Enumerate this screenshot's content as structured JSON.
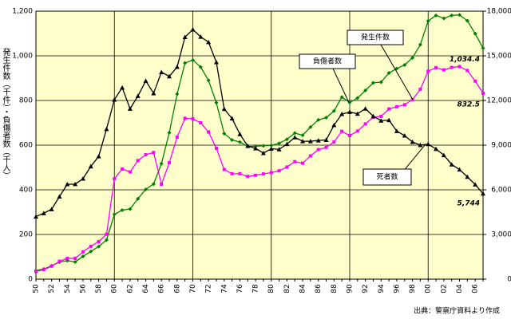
{
  "chart_data": {
    "type": "line",
    "y_label": "発生件数（千件）・負傷者数（千人）",
    "source": "出典：警察庁資料より作成",
    "categories": [
      "50",
      null,
      "52",
      null,
      "54",
      null,
      "56",
      null,
      "58",
      null,
      "60",
      null,
      "62",
      null,
      "64",
      null,
      "66",
      null,
      "68",
      null,
      "70",
      null,
      "72",
      null,
      "74",
      null,
      "76",
      null,
      "78",
      null,
      "80",
      null,
      "82",
      null,
      "84",
      null,
      "86",
      null,
      "88",
      null,
      "90",
      null,
      "92",
      null,
      "94",
      null,
      "96",
      null,
      "98",
      null,
      "00",
      null,
      "02",
      null,
      "04",
      null,
      "06",
      null
    ],
    "ylim": [
      0,
      1200
    ],
    "yticks": [
      0,
      200,
      400,
      600,
      800,
      {
        "value": 1000,
        "label": "1,000"
      },
      {
        "value": 1200,
        "label": "1,200"
      }
    ],
    "y2lim": [
      0,
      18000
    ],
    "y2ticks": [
      0,
      {
        "value": 3000,
        "label": "3,000"
      },
      {
        "value": 6000,
        "label": "6,000"
      },
      {
        "value": 9000,
        "label": "9,000"
      },
      {
        "value": 12000,
        "label": "12,000"
      },
      {
        "value": 15000,
        "label": "15,000"
      },
      {
        "value": 18000,
        "label": "18,000"
      }
    ],
    "grid": true,
    "series": [
      {
        "name": "負傷者数",
        "color": "#008000",
        "marker": "diamond",
        "values": [
          39,
          45,
          60,
          76,
          83,
          77,
          102,
          124,
          146,
          175,
          290,
          309,
          314,
          360,
          402,
          426,
          517,
          656,
          829,
          968,
          981,
          950,
          890,
          790,
          652,
          623,
          614,
          594,
          595,
          597,
          599,
          608,
          626,
          654,
          644,
          681,
          713,
          723,
          753,
          815,
          791,
          811,
          845,
          879,
          882,
          923,
          943,
          959,
          991,
          1050,
          1156,
          1181,
          1168,
          1181,
          1183,
          1157,
          1099,
          1034.4
        ],
        "value_labels": [
          null,
          null,
          null,
          null,
          null,
          null,
          null,
          null,
          null,
          null,
          null,
          null,
          null,
          null,
          null,
          null,
          null,
          null,
          null,
          null,
          null,
          null,
          null,
          null,
          null,
          null,
          null,
          null,
          null,
          null,
          null,
          null,
          null,
          null,
          null,
          null,
          null,
          null,
          null,
          null,
          null,
          null,
          null,
          null,
          null,
          null,
          null,
          null,
          null,
          null,
          null,
          null,
          null,
          null,
          null,
          null,
          null,
          "1,034.4"
        ]
      },
      {
        "name": "発生件数",
        "color": "#ff00ff",
        "marker": "square",
        "values": [
          34,
          42,
          58,
          80,
          93,
          93,
          122,
          147,
          168,
          201,
          449,
          493,
          480,
          531,
          557,
          567,
          425,
          521,
          636,
          720,
          718,
          700,
          659,
          586,
          491,
          472,
          472,
          460,
          465,
          471,
          477,
          485,
          502,
          526,
          519,
          552,
          580,
          590,
          614,
          662,
          643,
          663,
          695,
          725,
          729,
          762,
          772,
          781,
          804,
          850,
          931,
          947,
          937,
          948,
          952,
          934,
          887,
          832.5
        ],
        "value_labels": [
          null,
          null,
          null,
          null,
          null,
          null,
          null,
          null,
          null,
          null,
          null,
          null,
          null,
          null,
          null,
          null,
          null,
          null,
          null,
          null,
          null,
          null,
          null,
          null,
          null,
          null,
          null,
          null,
          null,
          null,
          null,
          null,
          null,
          null,
          null,
          null,
          null,
          null,
          null,
          null,
          null,
          null,
          null,
          null,
          null,
          null,
          null,
          null,
          null,
          null,
          null,
          null,
          null,
          null,
          null,
          null,
          null,
          "832.5"
        ]
      },
      {
        "name": "死者数",
        "color": "#000000",
        "marker": "triangle",
        "axis": "y2",
        "values": [
          4202,
          4429,
          4696,
          5544,
          6374,
          6379,
          6751,
          7575,
          8248,
          10079,
          12055,
          12865,
          11445,
          12301,
          13318,
          12484,
          13904,
          13618,
          14256,
          16257,
          16765,
          16278,
          15918,
          14574,
          11432,
          10792,
          9734,
          8945,
          8783,
          8466,
          8760,
          8719,
          9073,
          9520,
          9262,
          9261,
          9317,
          9347,
          10344,
          11086,
          11227,
          11109,
          11452,
          10942,
          10649,
          10679,
          9942,
          9640,
          9211,
          9006,
          9066,
          8747,
          8326,
          7702,
          7358,
          6871,
          6352,
          5744
        ],
        "value_labels": [
          null,
          null,
          null,
          null,
          null,
          null,
          null,
          null,
          null,
          null,
          null,
          null,
          null,
          null,
          null,
          null,
          null,
          null,
          null,
          null,
          null,
          null,
          null,
          null,
          null,
          null,
          null,
          null,
          null,
          null,
          null,
          null,
          null,
          null,
          null,
          null,
          null,
          null,
          null,
          null,
          null,
          null,
          null,
          null,
          null,
          null,
          null,
          null,
          null,
          null,
          null,
          null,
          null,
          null,
          null,
          null,
          null,
          "5,744"
        ]
      }
    ]
  }
}
